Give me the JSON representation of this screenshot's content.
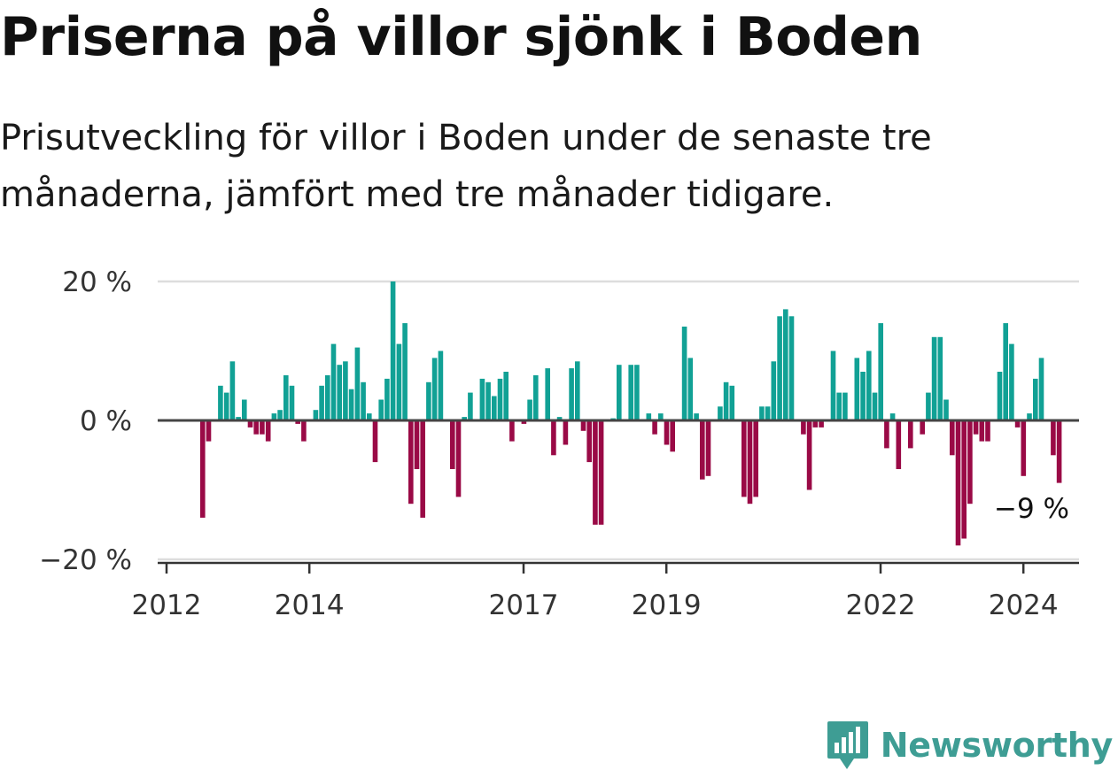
{
  "title": "Priserna på villor sjönk i Boden",
  "subtitle": "Prisutveckling för villor i Boden under de senaste tre månaderna, jämfört med tre månader tidigare.",
  "brand": {
    "name": "Newsworthy",
    "color": "#3e9d94"
  },
  "chart_data": {
    "type": "bar",
    "unit": "%",
    "ylim": [
      -20,
      20
    ],
    "yticks": [
      20,
      0,
      -20
    ],
    "ytick_labels": [
      "20 %",
      "0 %",
      "−20 %"
    ],
    "xticks": [
      2012,
      2014,
      2017,
      2019,
      2022,
      2024
    ],
    "x_start": 2012.0,
    "x_step": 0.0833,
    "grid": true,
    "colors": {
      "positive": "#11a195",
      "negative": "#9a0a46",
      "zero_line": "#444444",
      "grid": "#dddddd"
    },
    "values": [
      -14,
      -3,
      0,
      5,
      4,
      8.5,
      0.5,
      3,
      -1,
      -2,
      -2,
      -3,
      1,
      1.5,
      6.5,
      5,
      -0.5,
      -3,
      0,
      1.5,
      5,
      6.5,
      11,
      8,
      8.5,
      4.5,
      10.5,
      5.5,
      1,
      -6,
      3,
      6,
      20,
      11,
      14,
      -12,
      -7,
      -14,
      5.5,
      9,
      10,
      0,
      -7,
      -11,
      0.5,
      4,
      0,
      6,
      5.5,
      3.5,
      6,
      7,
      -3,
      0,
      -0.5,
      3,
      6.5,
      0,
      7.5,
      -5,
      0.5,
      -3.5,
      7.5,
      8.5,
      -1.5,
      -6,
      -15,
      -15,
      0,
      0.3,
      8,
      0,
      8,
      8,
      0,
      1,
      -2,
      1,
      -3.5,
      -4.5,
      0,
      13.5,
      9,
      1,
      -8.5,
      -8,
      0,
      2,
      5.5,
      5,
      0,
      -11,
      -12,
      -11,
      2,
      2,
      8.5,
      15,
      16,
      15,
      0,
      -2,
      -10,
      -1,
      -1,
      0,
      10,
      4,
      4,
      0,
      9,
      7,
      10,
      4,
      14,
      -4,
      1,
      -7,
      0,
      -4,
      0,
      -2,
      4,
      12,
      12,
      3,
      -5,
      -18,
      -17,
      -12,
      -2,
      -3,
      -3,
      0,
      7,
      14,
      11,
      -1,
      -8,
      1,
      6,
      9,
      0,
      -5,
      -9
    ],
    "last_value_label": "−9 %"
  }
}
